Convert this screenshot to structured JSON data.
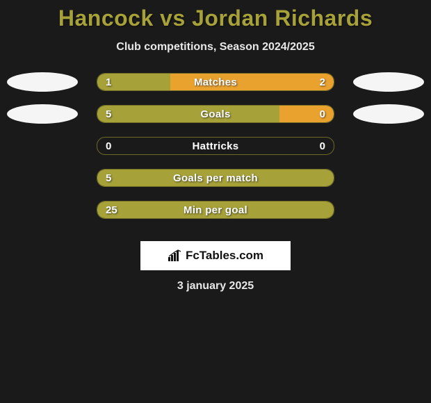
{
  "title": "Hancock vs Jordan Richards",
  "subtitle": "Club competitions, Season 2024/2025",
  "date": "3 january 2025",
  "logo_text": "FcTables.com",
  "colors": {
    "player1_bar": "#a6a138",
    "player2_bar": "#eaa22f",
    "bar_border": "#6e6a25",
    "title_color": "#a6a138",
    "avatar": "#f5f5f5",
    "background": "#1a1a1a",
    "text_light": "#e8e8e8"
  },
  "avatars": [
    {
      "row_index": 0,
      "side": "left",
      "name": "player1-avatar"
    },
    {
      "row_index": 0,
      "side": "right",
      "name": "player2-avatar"
    },
    {
      "row_index": 1,
      "side": "left",
      "name": "player1-team-avatar"
    },
    {
      "row_index": 1,
      "side": "right",
      "name": "player2-team-avatar"
    }
  ],
  "metrics": [
    {
      "label": "Matches",
      "left_val": "1",
      "right_val": "2",
      "left_pct": 31,
      "right_pct": 69
    },
    {
      "label": "Goals",
      "left_val": "5",
      "right_val": "0",
      "left_pct": 77,
      "right_pct": 23
    },
    {
      "label": "Hattricks",
      "left_val": "0",
      "right_val": "0",
      "left_pct": 0,
      "right_pct": 0
    },
    {
      "label": "Goals per match",
      "left_val": "5",
      "right_val": "",
      "left_pct": 100,
      "right_pct": 0
    },
    {
      "label": "Min per goal",
      "left_val": "25",
      "right_val": "",
      "left_pct": 100,
      "right_pct": 0
    }
  ]
}
